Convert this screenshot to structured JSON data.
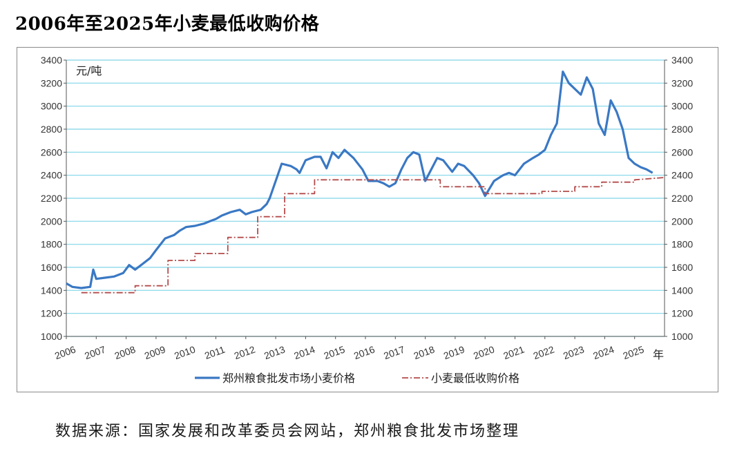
{
  "page": {
    "title": "2006年至2025年小麦最低收购价格",
    "source": "数据来源：国家发展和改革委员会网站，郑州粮食批发市场整理"
  },
  "chart_data": {
    "type": "line",
    "title": "2006年至2025年小麦最低收购价格",
    "unit_label": "元/吨",
    "xlabel": "年",
    "ylim": [
      1000,
      3400
    ],
    "y_ticks": [
      1000,
      1200,
      1400,
      1600,
      1800,
      2000,
      2200,
      2400,
      2600,
      2800,
      3000,
      3200,
      3400
    ],
    "x_ticks": [
      "2006",
      "2007",
      "2008",
      "2009",
      "2010",
      "2011",
      "2012",
      "2013",
      "2014",
      "2015",
      "2016",
      "2017",
      "2018",
      "2019",
      "2020",
      "2021",
      "2022",
      "2023",
      "2024",
      "2025"
    ],
    "xlim": [
      2006,
      2026
    ],
    "grid": true,
    "legend_position": "bottom-center",
    "colors": {
      "market": "#3a78c4",
      "minimum": "#b44a4a",
      "grid": "#7fd4e8"
    },
    "series": [
      {
        "name": "郑州粮食批发市场小麦价格",
        "style": "solid",
        "x": [
          2006.0,
          2006.2,
          2006.5,
          2006.8,
          2006.9,
          2007.0,
          2007.3,
          2007.6,
          2007.9,
          2008.1,
          2008.3,
          2008.5,
          2008.8,
          2009.0,
          2009.3,
          2009.6,
          2009.8,
          2010.0,
          2010.3,
          2010.6,
          2010.8,
          2011.0,
          2011.2,
          2011.5,
          2011.8,
          2012.0,
          2012.2,
          2012.5,
          2012.7,
          2012.8,
          2013.0,
          2013.2,
          2013.5,
          2013.7,
          2013.8,
          2014.0,
          2014.3,
          2014.5,
          2014.7,
          2014.9,
          2015.1,
          2015.3,
          2015.6,
          2015.9,
          2016.1,
          2016.4,
          2016.6,
          2016.8,
          2017.0,
          2017.2,
          2017.4,
          2017.6,
          2017.8,
          2018.0,
          2018.2,
          2018.4,
          2018.6,
          2018.9,
          2019.1,
          2019.3,
          2019.6,
          2019.8,
          2020.0,
          2020.3,
          2020.6,
          2020.8,
          2021.0,
          2021.3,
          2021.6,
          2021.8,
          2022.0,
          2022.2,
          2022.4,
          2022.6,
          2022.8,
          2023.0,
          2023.2,
          2023.4,
          2023.6,
          2023.8,
          2024.0,
          2024.2,
          2024.4,
          2024.6,
          2024.8,
          2025.0,
          2025.2,
          2025.4,
          2025.6
        ],
        "y": [
          1460,
          1430,
          1420,
          1430,
          1580,
          1500,
          1510,
          1520,
          1550,
          1620,
          1580,
          1620,
          1680,
          1750,
          1850,
          1880,
          1920,
          1950,
          1960,
          1980,
          2000,
          2020,
          2050,
          2080,
          2100,
          2060,
          2080,
          2100,
          2150,
          2200,
          2350,
          2500,
          2480,
          2450,
          2420,
          2530,
          2560,
          2560,
          2460,
          2600,
          2550,
          2620,
          2550,
          2450,
          2350,
          2350,
          2330,
          2300,
          2330,
          2450,
          2550,
          2600,
          2580,
          2350,
          2450,
          2550,
          2530,
          2430,
          2500,
          2480,
          2400,
          2330,
          2220,
          2350,
          2400,
          2420,
          2400,
          2500,
          2550,
          2580,
          2620,
          2750,
          2850,
          3300,
          3200,
          3150,
          3100,
          3250,
          3150,
          2850,
          2750,
          3050,
          2950,
          2800,
          2550,
          2500,
          2470,
          2450,
          2420
        ]
      },
      {
        "name": "小麦最低收购价格",
        "style": "dash-dot",
        "x": [
          2006.5,
          2008.3,
          2008.3,
          2009.4,
          2009.4,
          2010.3,
          2010.3,
          2011.4,
          2011.4,
          2012.4,
          2012.4,
          2013.3,
          2013.3,
          2014.3,
          2014.3,
          2015.0,
          2015.0,
          2018.5,
          2018.5,
          2020.0,
          2020.0,
          2021.9,
          2021.9,
          2023.0,
          2023.0,
          2023.9,
          2023.9,
          2025.0,
          2025.0,
          2026.0
        ],
        "y": [
          1380,
          1380,
          1440,
          1440,
          1660,
          1660,
          1720,
          1720,
          1860,
          1860,
          2040,
          2040,
          2240,
          2240,
          2360,
          2360,
          2360,
          2360,
          2300,
          2300,
          2240,
          2240,
          2260,
          2260,
          2300,
          2300,
          2340,
          2340,
          2360,
          2380
        ]
      }
    ]
  }
}
